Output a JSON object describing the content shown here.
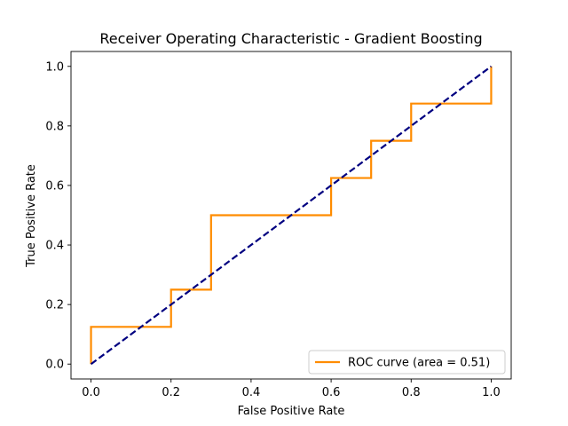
{
  "chart_data": {
    "type": "line",
    "title": "Receiver Operating Characteristic - Gradient Boosting",
    "xlabel": "False Positive Rate",
    "ylabel": "True Positive Rate",
    "xlim": [
      -0.05,
      1.05
    ],
    "ylim": [
      -0.05,
      1.05
    ],
    "xticks": [
      0.0,
      0.2,
      0.4,
      0.6,
      0.8,
      1.0
    ],
    "xtick_labels": [
      "0.0",
      "0.2",
      "0.4",
      "0.6",
      "0.8",
      "1.0"
    ],
    "yticks": [
      0.0,
      0.2,
      0.4,
      0.6,
      0.8,
      1.0
    ],
    "ytick_labels": [
      "0.0",
      "0.2",
      "0.4",
      "0.6",
      "0.8",
      "1.0"
    ],
    "grid": false,
    "legend_position": "lower-right",
    "series": [
      {
        "name": "ROC curve (area = 0.51)",
        "color": "#ff8c00",
        "style": "solid",
        "x": [
          0.0,
          0.0,
          0.2,
          0.2,
          0.3,
          0.3,
          0.6,
          0.6,
          0.7,
          0.7,
          0.8,
          0.8,
          1.0,
          1.0
        ],
        "y": [
          0.0,
          0.125,
          0.125,
          0.25,
          0.25,
          0.5,
          0.5,
          0.625,
          0.625,
          0.75,
          0.75,
          0.875,
          0.875,
          1.0
        ]
      },
      {
        "color": "#000080",
        "style": "dashed",
        "x": [
          0.0,
          1.0
        ],
        "y": [
          0.0,
          1.0
        ]
      }
    ]
  }
}
